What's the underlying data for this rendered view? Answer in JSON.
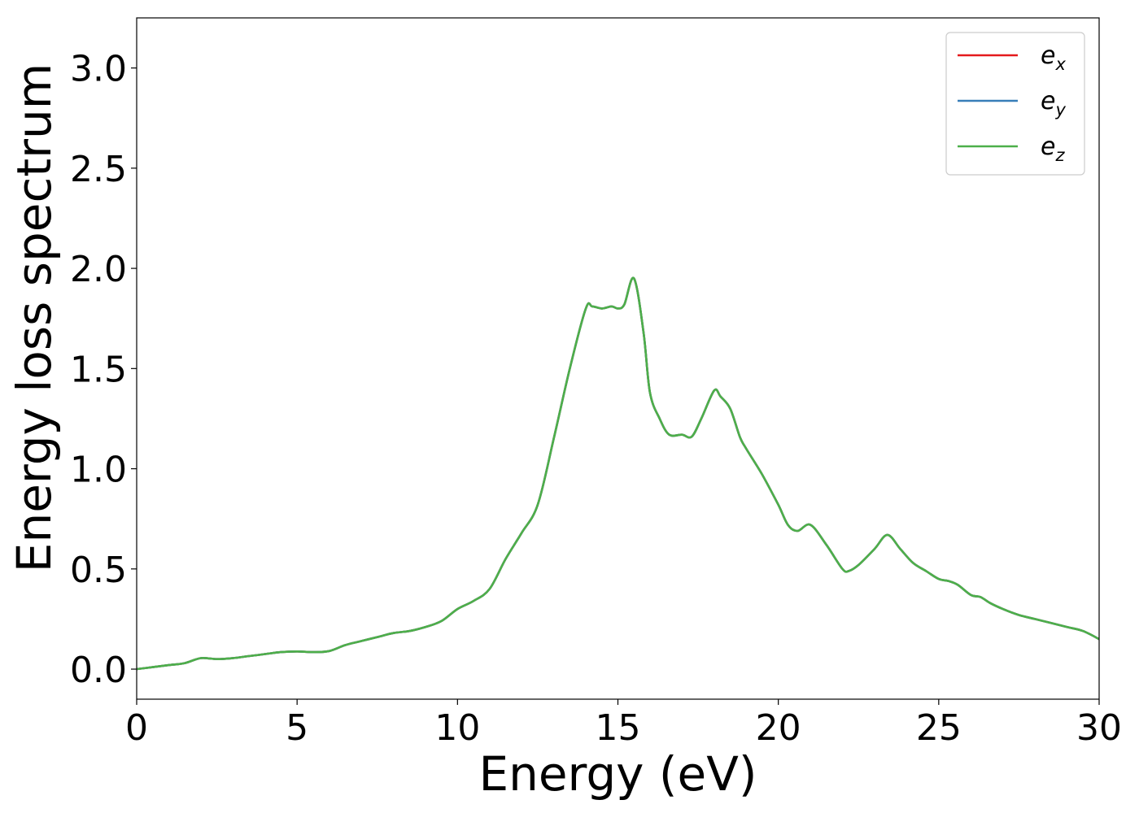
{
  "chart_data": {
    "type": "line",
    "title": "",
    "xlabel": "Energy (eV)",
    "ylabel": "Energy loss spectrum",
    "xlim": [
      0,
      30
    ],
    "ylim": [
      -0.15,
      3.25
    ],
    "xticks": [
      0,
      5,
      10,
      15,
      20,
      25,
      30
    ],
    "xtick_labels": [
      "0",
      "5",
      "10",
      "15",
      "20",
      "25",
      "30"
    ],
    "yticks": [
      0.0,
      0.5,
      1.0,
      1.5,
      2.0,
      2.5,
      3.0
    ],
    "ytick_labels": [
      "0.0",
      "0.5",
      "1.0",
      "1.5",
      "2.0",
      "2.5",
      "3.0"
    ],
    "grid": false,
    "legend_position": "top-right",
    "x": [
      0,
      0.5,
      1.0,
      1.5,
      2.0,
      2.5,
      3.0,
      3.5,
      4.0,
      4.5,
      5.0,
      5.5,
      6.0,
      6.5,
      7.0,
      7.5,
      8.0,
      8.5,
      9.0,
      9.5,
      10.0,
      10.5,
      11.0,
      11.5,
      12.0,
      12.5,
      13.0,
      13.5,
      14.0,
      14.2,
      14.5,
      14.8,
      15.0,
      15.2,
      15.5,
      15.8,
      16.0,
      16.3,
      16.6,
      17.0,
      17.3,
      17.6,
      18.0,
      18.2,
      18.5,
      18.8,
      19.0,
      19.5,
      20.0,
      20.3,
      20.6,
      21.0,
      21.5,
      22.0,
      22.2,
      22.5,
      23.0,
      23.4,
      23.8,
      24.2,
      24.6,
      25.0,
      25.3,
      25.6,
      26.0,
      26.3,
      26.6,
      27.0,
      27.5,
      28.0,
      28.5,
      29.0,
      29.5,
      30.0
    ],
    "series": [
      {
        "name": "e_x",
        "color": "#e41a1c",
        "values": [
          0.0,
          0.01,
          0.02,
          0.03,
          0.055,
          0.05,
          0.055,
          0.065,
          0.075,
          0.085,
          0.088,
          0.085,
          0.09,
          0.12,
          0.14,
          0.16,
          0.18,
          0.19,
          0.21,
          0.24,
          0.3,
          0.34,
          0.4,
          0.55,
          0.68,
          0.82,
          1.15,
          1.5,
          1.8,
          1.81,
          1.8,
          1.81,
          1.8,
          1.82,
          1.95,
          1.68,
          1.38,
          1.25,
          1.17,
          1.17,
          1.16,
          1.25,
          1.39,
          1.36,
          1.3,
          1.16,
          1.1,
          0.97,
          0.82,
          0.72,
          0.69,
          0.72,
          0.62,
          0.5,
          0.49,
          0.52,
          0.6,
          0.67,
          0.6,
          0.53,
          0.49,
          0.45,
          0.44,
          0.42,
          0.37,
          0.36,
          0.33,
          0.3,
          0.27,
          0.25,
          0.23,
          0.21,
          0.19,
          0.15
        ]
      },
      {
        "name": "e_y",
        "color": "#377eb8",
        "values": [
          0.0,
          0.01,
          0.02,
          0.03,
          0.055,
          0.05,
          0.055,
          0.065,
          0.075,
          0.085,
          0.088,
          0.085,
          0.09,
          0.12,
          0.14,
          0.16,
          0.18,
          0.19,
          0.21,
          0.24,
          0.3,
          0.34,
          0.4,
          0.55,
          0.68,
          0.82,
          1.15,
          1.5,
          1.8,
          1.81,
          1.8,
          1.81,
          1.8,
          1.82,
          1.95,
          1.68,
          1.38,
          1.25,
          1.17,
          1.17,
          1.16,
          1.25,
          1.39,
          1.36,
          1.3,
          1.16,
          1.1,
          0.97,
          0.82,
          0.72,
          0.69,
          0.72,
          0.62,
          0.5,
          0.49,
          0.52,
          0.6,
          0.67,
          0.6,
          0.53,
          0.49,
          0.45,
          0.44,
          0.42,
          0.37,
          0.36,
          0.33,
          0.3,
          0.27,
          0.25,
          0.23,
          0.21,
          0.19,
          0.15
        ]
      },
      {
        "name": "e_z",
        "color": "#4daf4a",
        "values": [
          0.0,
          0.01,
          0.02,
          0.03,
          0.055,
          0.05,
          0.055,
          0.065,
          0.075,
          0.085,
          0.088,
          0.085,
          0.09,
          0.12,
          0.14,
          0.16,
          0.18,
          0.19,
          0.21,
          0.24,
          0.3,
          0.34,
          0.4,
          0.55,
          0.68,
          0.82,
          1.15,
          1.5,
          1.8,
          1.81,
          1.8,
          1.81,
          1.8,
          1.82,
          1.95,
          1.68,
          1.38,
          1.25,
          1.17,
          1.17,
          1.16,
          1.25,
          1.39,
          1.36,
          1.3,
          1.16,
          1.1,
          0.97,
          0.82,
          0.72,
          0.69,
          0.72,
          0.62,
          0.5,
          0.49,
          0.52,
          0.6,
          0.67,
          0.6,
          0.53,
          0.49,
          0.45,
          0.44,
          0.42,
          0.37,
          0.36,
          0.33,
          0.3,
          0.27,
          0.25,
          0.23,
          0.21,
          0.19,
          0.15
        ]
      }
    ],
    "legend": [
      {
        "base": "e",
        "sub": "x"
      },
      {
        "base": "e",
        "sub": "y"
      },
      {
        "base": "e",
        "sub": "z"
      }
    ]
  }
}
